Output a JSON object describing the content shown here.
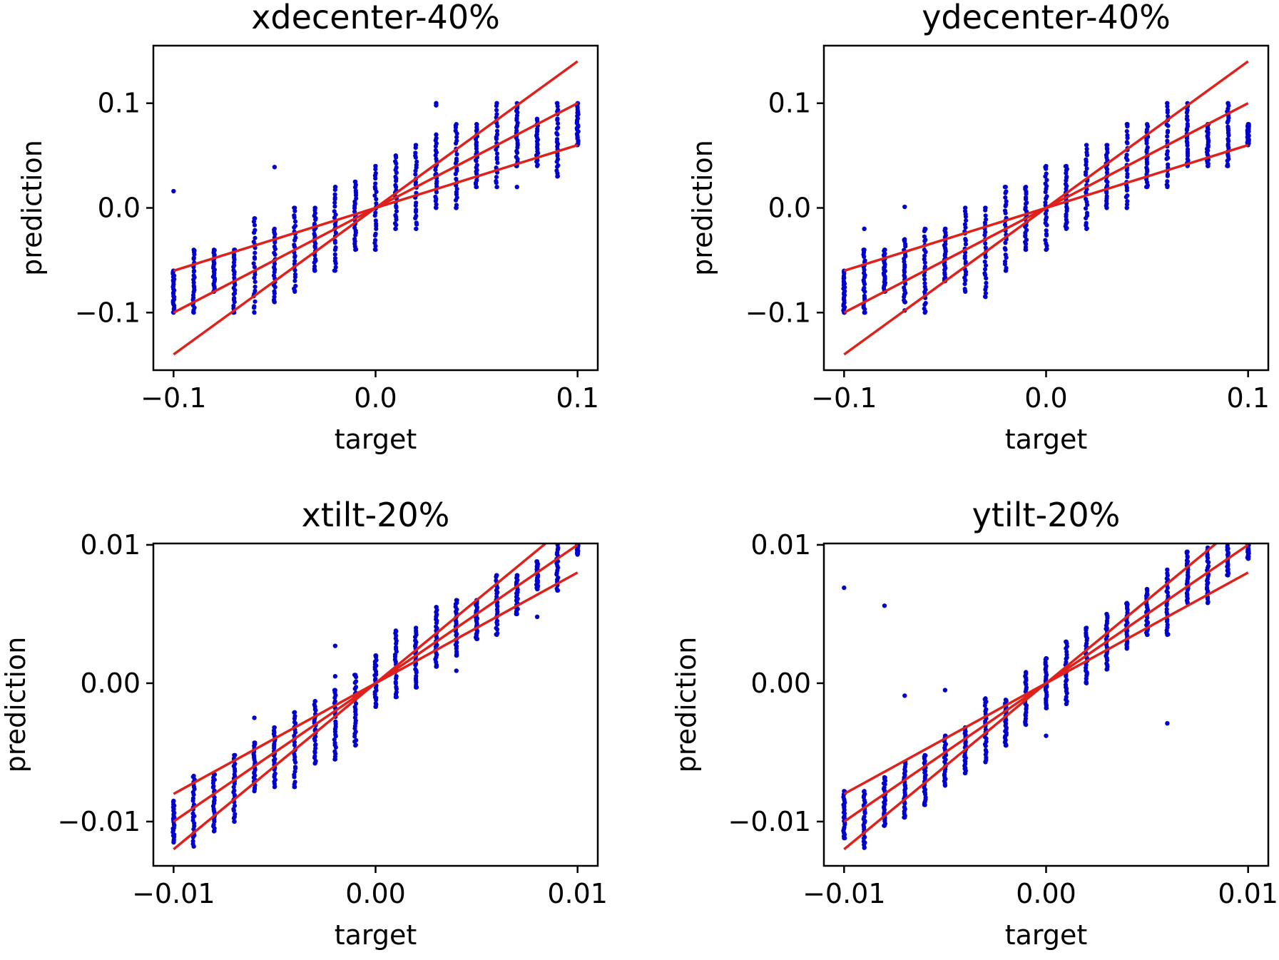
{
  "colors": {
    "points": "#0000cc",
    "reference_lines": "#e0201b",
    "axes": "#000000",
    "background": "#ffffff"
  },
  "chart_data": [
    {
      "type": "scatter",
      "title": "xdecenter-40%",
      "xlabel": "target",
      "ylabel": "prediction",
      "xlim": [
        -0.11,
        0.11
      ],
      "ylim": [
        -0.155,
        0.155
      ],
      "xticks": [
        -0.1,
        0.0,
        0.1
      ],
      "xtick_labels": [
        "−0.1",
        "0.0",
        "0.1"
      ],
      "yticks": [
        -0.1,
        0.0,
        0.1
      ],
      "ytick_labels": [
        "−0.1",
        "0.0",
        "0.1"
      ],
      "grid": false,
      "reference_lines": [
        {
          "x": [
            -0.1,
            0.1
          ],
          "y": [
            -0.14,
            0.14
          ]
        },
        {
          "x": [
            -0.1,
            0.1
          ],
          "y": [
            -0.1,
            0.1
          ]
        },
        {
          "x": [
            -0.1,
            0.1
          ],
          "y": [
            -0.06,
            0.06
          ]
        }
      ],
      "columns": [
        {
          "x": -0.1,
          "y_min": -0.1,
          "y_max": -0.06
        },
        {
          "x": -0.09,
          "y_min": -0.1,
          "y_max": -0.04
        },
        {
          "x": -0.08,
          "y_min": -0.08,
          "y_max": -0.04
        },
        {
          "x": -0.07,
          "y_min": -0.1,
          "y_max": -0.04
        },
        {
          "x": -0.06,
          "y_min": -0.1,
          "y_max": -0.01
        },
        {
          "x": -0.05,
          "y_min": -0.09,
          "y_max": -0.02
        },
        {
          "x": -0.04,
          "y_min": -0.08,
          "y_max": 0.0
        },
        {
          "x": -0.03,
          "y_min": -0.06,
          "y_max": 0.0
        },
        {
          "x": -0.02,
          "y_min": -0.06,
          "y_max": 0.02
        },
        {
          "x": -0.01,
          "y_min": -0.04,
          "y_max": 0.025
        },
        {
          "x": 0.0,
          "y_min": -0.04,
          "y_max": 0.04
        },
        {
          "x": 0.01,
          "y_min": -0.02,
          "y_max": 0.05
        },
        {
          "x": 0.02,
          "y_min": -0.02,
          "y_max": 0.06
        },
        {
          "x": 0.03,
          "y_min": 0.0,
          "y_max": 0.07
        },
        {
          "x": 0.04,
          "y_min": 0.0,
          "y_max": 0.08
        },
        {
          "x": 0.05,
          "y_min": 0.02,
          "y_max": 0.08
        },
        {
          "x": 0.06,
          "y_min": 0.02,
          "y_max": 0.1
        },
        {
          "x": 0.07,
          "y_min": 0.04,
          "y_max": 0.1
        },
        {
          "x": 0.08,
          "y_min": 0.04,
          "y_max": 0.085
        },
        {
          "x": 0.09,
          "y_min": 0.03,
          "y_max": 0.1
        },
        {
          "x": 0.1,
          "y_min": 0.06,
          "y_max": 0.1
        }
      ],
      "outliers": [
        {
          "x": -0.1,
          "y": 0.016
        },
        {
          "x": -0.05,
          "y": 0.039
        },
        {
          "x": 0.03,
          "y": 0.1
        },
        {
          "x": 0.03,
          "y": 0.098
        },
        {
          "x": 0.07,
          "y": 0.02
        }
      ]
    },
    {
      "type": "scatter",
      "title": "ydecenter-40%",
      "xlabel": "target",
      "ylabel": "prediction",
      "xlim": [
        -0.11,
        0.11
      ],
      "ylim": [
        -0.155,
        0.155
      ],
      "xticks": [
        -0.1,
        0.0,
        0.1
      ],
      "xtick_labels": [
        "−0.1",
        "0.0",
        "0.1"
      ],
      "yticks": [
        -0.1,
        0.0,
        0.1
      ],
      "ytick_labels": [
        "−0.1",
        "0.0",
        "0.1"
      ],
      "grid": false,
      "reference_lines": [
        {
          "x": [
            -0.1,
            0.1
          ],
          "y": [
            -0.14,
            0.14
          ]
        },
        {
          "x": [
            -0.1,
            0.1
          ],
          "y": [
            -0.1,
            0.1
          ]
        },
        {
          "x": [
            -0.1,
            0.1
          ],
          "y": [
            -0.06,
            0.06
          ]
        }
      ],
      "columns": [
        {
          "x": -0.1,
          "y_min": -0.1,
          "y_max": -0.06
        },
        {
          "x": -0.09,
          "y_min": -0.1,
          "y_max": -0.04
        },
        {
          "x": -0.08,
          "y_min": -0.08,
          "y_max": -0.04
        },
        {
          "x": -0.07,
          "y_min": -0.09,
          "y_max": -0.03
        },
        {
          "x": -0.06,
          "y_min": -0.1,
          "y_max": -0.02
        },
        {
          "x": -0.05,
          "y_min": -0.07,
          "y_max": -0.02
        },
        {
          "x": -0.04,
          "y_min": -0.08,
          "y_max": -0.0
        },
        {
          "x": -0.03,
          "y_min": -0.085,
          "y_max": 0.0
        },
        {
          "x": -0.02,
          "y_min": -0.06,
          "y_max": 0.02
        },
        {
          "x": -0.01,
          "y_min": -0.04,
          "y_max": 0.02
        },
        {
          "x": 0.0,
          "y_min": -0.04,
          "y_max": 0.04
        },
        {
          "x": 0.01,
          "y_min": -0.02,
          "y_max": 0.04
        },
        {
          "x": 0.02,
          "y_min": -0.02,
          "y_max": 0.06
        },
        {
          "x": 0.03,
          "y_min": 0.0,
          "y_max": 0.06
        },
        {
          "x": 0.04,
          "y_min": 0.0,
          "y_max": 0.08
        },
        {
          "x": 0.05,
          "y_min": 0.02,
          "y_max": 0.08
        },
        {
          "x": 0.06,
          "y_min": 0.02,
          "y_max": 0.1
        },
        {
          "x": 0.07,
          "y_min": 0.04,
          "y_max": 0.1
        },
        {
          "x": 0.08,
          "y_min": 0.04,
          "y_max": 0.08
        },
        {
          "x": 0.09,
          "y_min": 0.04,
          "y_max": 0.1
        },
        {
          "x": 0.1,
          "y_min": 0.06,
          "y_max": 0.08
        }
      ],
      "outliers": [
        {
          "x": -0.09,
          "y": -0.02
        },
        {
          "x": -0.07,
          "y": 0.001
        },
        {
          "x": -0.1,
          "y": -0.072
        },
        {
          "x": -0.07,
          "y": -0.098
        }
      ]
    },
    {
      "type": "scatter",
      "title": "xtilt-20%",
      "xlabel": "target",
      "ylabel": "prediction",
      "xlim": [
        -0.011,
        0.011
      ],
      "ylim": [
        -0.0132,
        0.0101
      ],
      "xticks": [
        -0.01,
        0.0,
        0.01
      ],
      "xtick_labels": [
        "−0.01",
        "0.00",
        "0.01"
      ],
      "yticks": [
        -0.01,
        0.0,
        0.01
      ],
      "ytick_labels": [
        "−0.01",
        "0.00",
        "0.01"
      ],
      "grid": false,
      "reference_lines": [
        {
          "x": [
            -0.01,
            0.01
          ],
          "y": [
            -0.012,
            0.012
          ]
        },
        {
          "x": [
            -0.01,
            0.01
          ],
          "y": [
            -0.01,
            0.01
          ]
        },
        {
          "x": [
            -0.01,
            0.01
          ],
          "y": [
            -0.008,
            0.008
          ]
        }
      ],
      "columns": [
        {
          "x": -0.01,
          "y_min": -0.0115,
          "y_max": -0.0085
        },
        {
          "x": -0.009,
          "y_min": -0.0118,
          "y_max": -0.0067
        },
        {
          "x": -0.008,
          "y_min": -0.0107,
          "y_max": -0.0066
        },
        {
          "x": -0.007,
          "y_min": -0.01,
          "y_max": -0.0052
        },
        {
          "x": -0.006,
          "y_min": -0.0078,
          "y_max": -0.0043
        },
        {
          "x": -0.005,
          "y_min": -0.0075,
          "y_max": -0.0032
        },
        {
          "x": -0.004,
          "y_min": -0.0075,
          "y_max": -0.0021
        },
        {
          "x": -0.003,
          "y_min": -0.0058,
          "y_max": -0.0013
        },
        {
          "x": -0.002,
          "y_min": -0.0055,
          "y_max": -0.0005
        },
        {
          "x": -0.001,
          "y_min": -0.0045,
          "y_max": 0.0006
        },
        {
          "x": 0.0,
          "y_min": -0.0017,
          "y_max": 0.002
        },
        {
          "x": 0.001,
          "y_min": -0.001,
          "y_max": 0.0038
        },
        {
          "x": 0.002,
          "y_min": -0.0003,
          "y_max": 0.004
        },
        {
          "x": 0.003,
          "y_min": 0.0012,
          "y_max": 0.0055
        },
        {
          "x": 0.004,
          "y_min": 0.002,
          "y_max": 0.006
        },
        {
          "x": 0.005,
          "y_min": 0.0032,
          "y_max": 0.006
        },
        {
          "x": 0.006,
          "y_min": 0.0035,
          "y_max": 0.0078
        },
        {
          "x": 0.007,
          "y_min": 0.005,
          "y_max": 0.0078
        },
        {
          "x": 0.008,
          "y_min": 0.0068,
          "y_max": 0.0088
        },
        {
          "x": 0.009,
          "y_min": 0.0067,
          "y_max": 0.0108
        },
        {
          "x": 0.01,
          "y_min": 0.0093,
          "y_max": 0.0108
        }
      ],
      "outliers": [
        {
          "x": -0.006,
          "y": -0.0025
        },
        {
          "x": -0.002,
          "y": 0.0027
        },
        {
          "x": -0.002,
          "y": 0.0005
        },
        {
          "x": 0.004,
          "y": 0.0009
        },
        {
          "x": 0.008,
          "y": 0.0048
        }
      ]
    },
    {
      "type": "scatter",
      "title": "ytilt-20%",
      "xlabel": "target",
      "ylabel": "prediction",
      "xlim": [
        -0.011,
        0.011
      ],
      "ylim": [
        -0.0132,
        0.0101
      ],
      "xticks": [
        -0.01,
        0.0,
        0.01
      ],
      "xtick_labels": [
        "−0.01",
        "0.00",
        "0.01"
      ],
      "yticks": [
        -0.01,
        0.0,
        0.01
      ],
      "ytick_labels": [
        "−0.01",
        "0.00",
        "0.01"
      ],
      "grid": false,
      "reference_lines": [
        {
          "x": [
            -0.01,
            0.01
          ],
          "y": [
            -0.012,
            0.012
          ]
        },
        {
          "x": [
            -0.01,
            0.01
          ],
          "y": [
            -0.01,
            0.01
          ]
        },
        {
          "x": [
            -0.01,
            0.01
          ],
          "y": [
            -0.008,
            0.008
          ]
        }
      ],
      "columns": [
        {
          "x": -0.01,
          "y_min": -0.0112,
          "y_max": -0.0078
        },
        {
          "x": -0.009,
          "y_min": -0.0119,
          "y_max": -0.0078
        },
        {
          "x": -0.008,
          "y_min": -0.0103,
          "y_max": -0.0068
        },
        {
          "x": -0.007,
          "y_min": -0.0097,
          "y_max": -0.0057
        },
        {
          "x": -0.006,
          "y_min": -0.0088,
          "y_max": -0.0052
        },
        {
          "x": -0.005,
          "y_min": -0.0074,
          "y_max": -0.0038
        },
        {
          "x": -0.004,
          "y_min": -0.0065,
          "y_max": -0.0032
        },
        {
          "x": -0.003,
          "y_min": -0.0057,
          "y_max": -0.0011
        },
        {
          "x": -0.002,
          "y_min": -0.0045,
          "y_max": -0.0012
        },
        {
          "x": -0.001,
          "y_min": -0.003,
          "y_max": 0.0008
        },
        {
          "x": 0.0,
          "y_min": -0.0018,
          "y_max": 0.0018
        },
        {
          "x": 0.001,
          "y_min": -0.0015,
          "y_max": 0.003
        },
        {
          "x": 0.002,
          "y_min": 0.0,
          "y_max": 0.004
        },
        {
          "x": 0.003,
          "y_min": 0.001,
          "y_max": 0.005
        },
        {
          "x": 0.004,
          "y_min": 0.0025,
          "y_max": 0.0058
        },
        {
          "x": 0.005,
          "y_min": 0.0035,
          "y_max": 0.0068
        },
        {
          "x": 0.006,
          "y_min": 0.0035,
          "y_max": 0.0082
        },
        {
          "x": 0.007,
          "y_min": 0.0058,
          "y_max": 0.0095
        },
        {
          "x": 0.008,
          "y_min": 0.0058,
          "y_max": 0.0098
        },
        {
          "x": 0.009,
          "y_min": 0.0078,
          "y_max": 0.0108
        },
        {
          "x": 0.01,
          "y_min": 0.009,
          "y_max": 0.011
        }
      ],
      "outliers": [
        {
          "x": -0.01,
          "y": 0.0069
        },
        {
          "x": -0.008,
          "y": 0.0056
        },
        {
          "x": -0.007,
          "y": -0.0009
        },
        {
          "x": -0.005,
          "y": -0.0005
        },
        {
          "x": 0.006,
          "y": -0.0029
        },
        {
          "x": 0.0,
          "y": -0.0038
        }
      ]
    }
  ]
}
